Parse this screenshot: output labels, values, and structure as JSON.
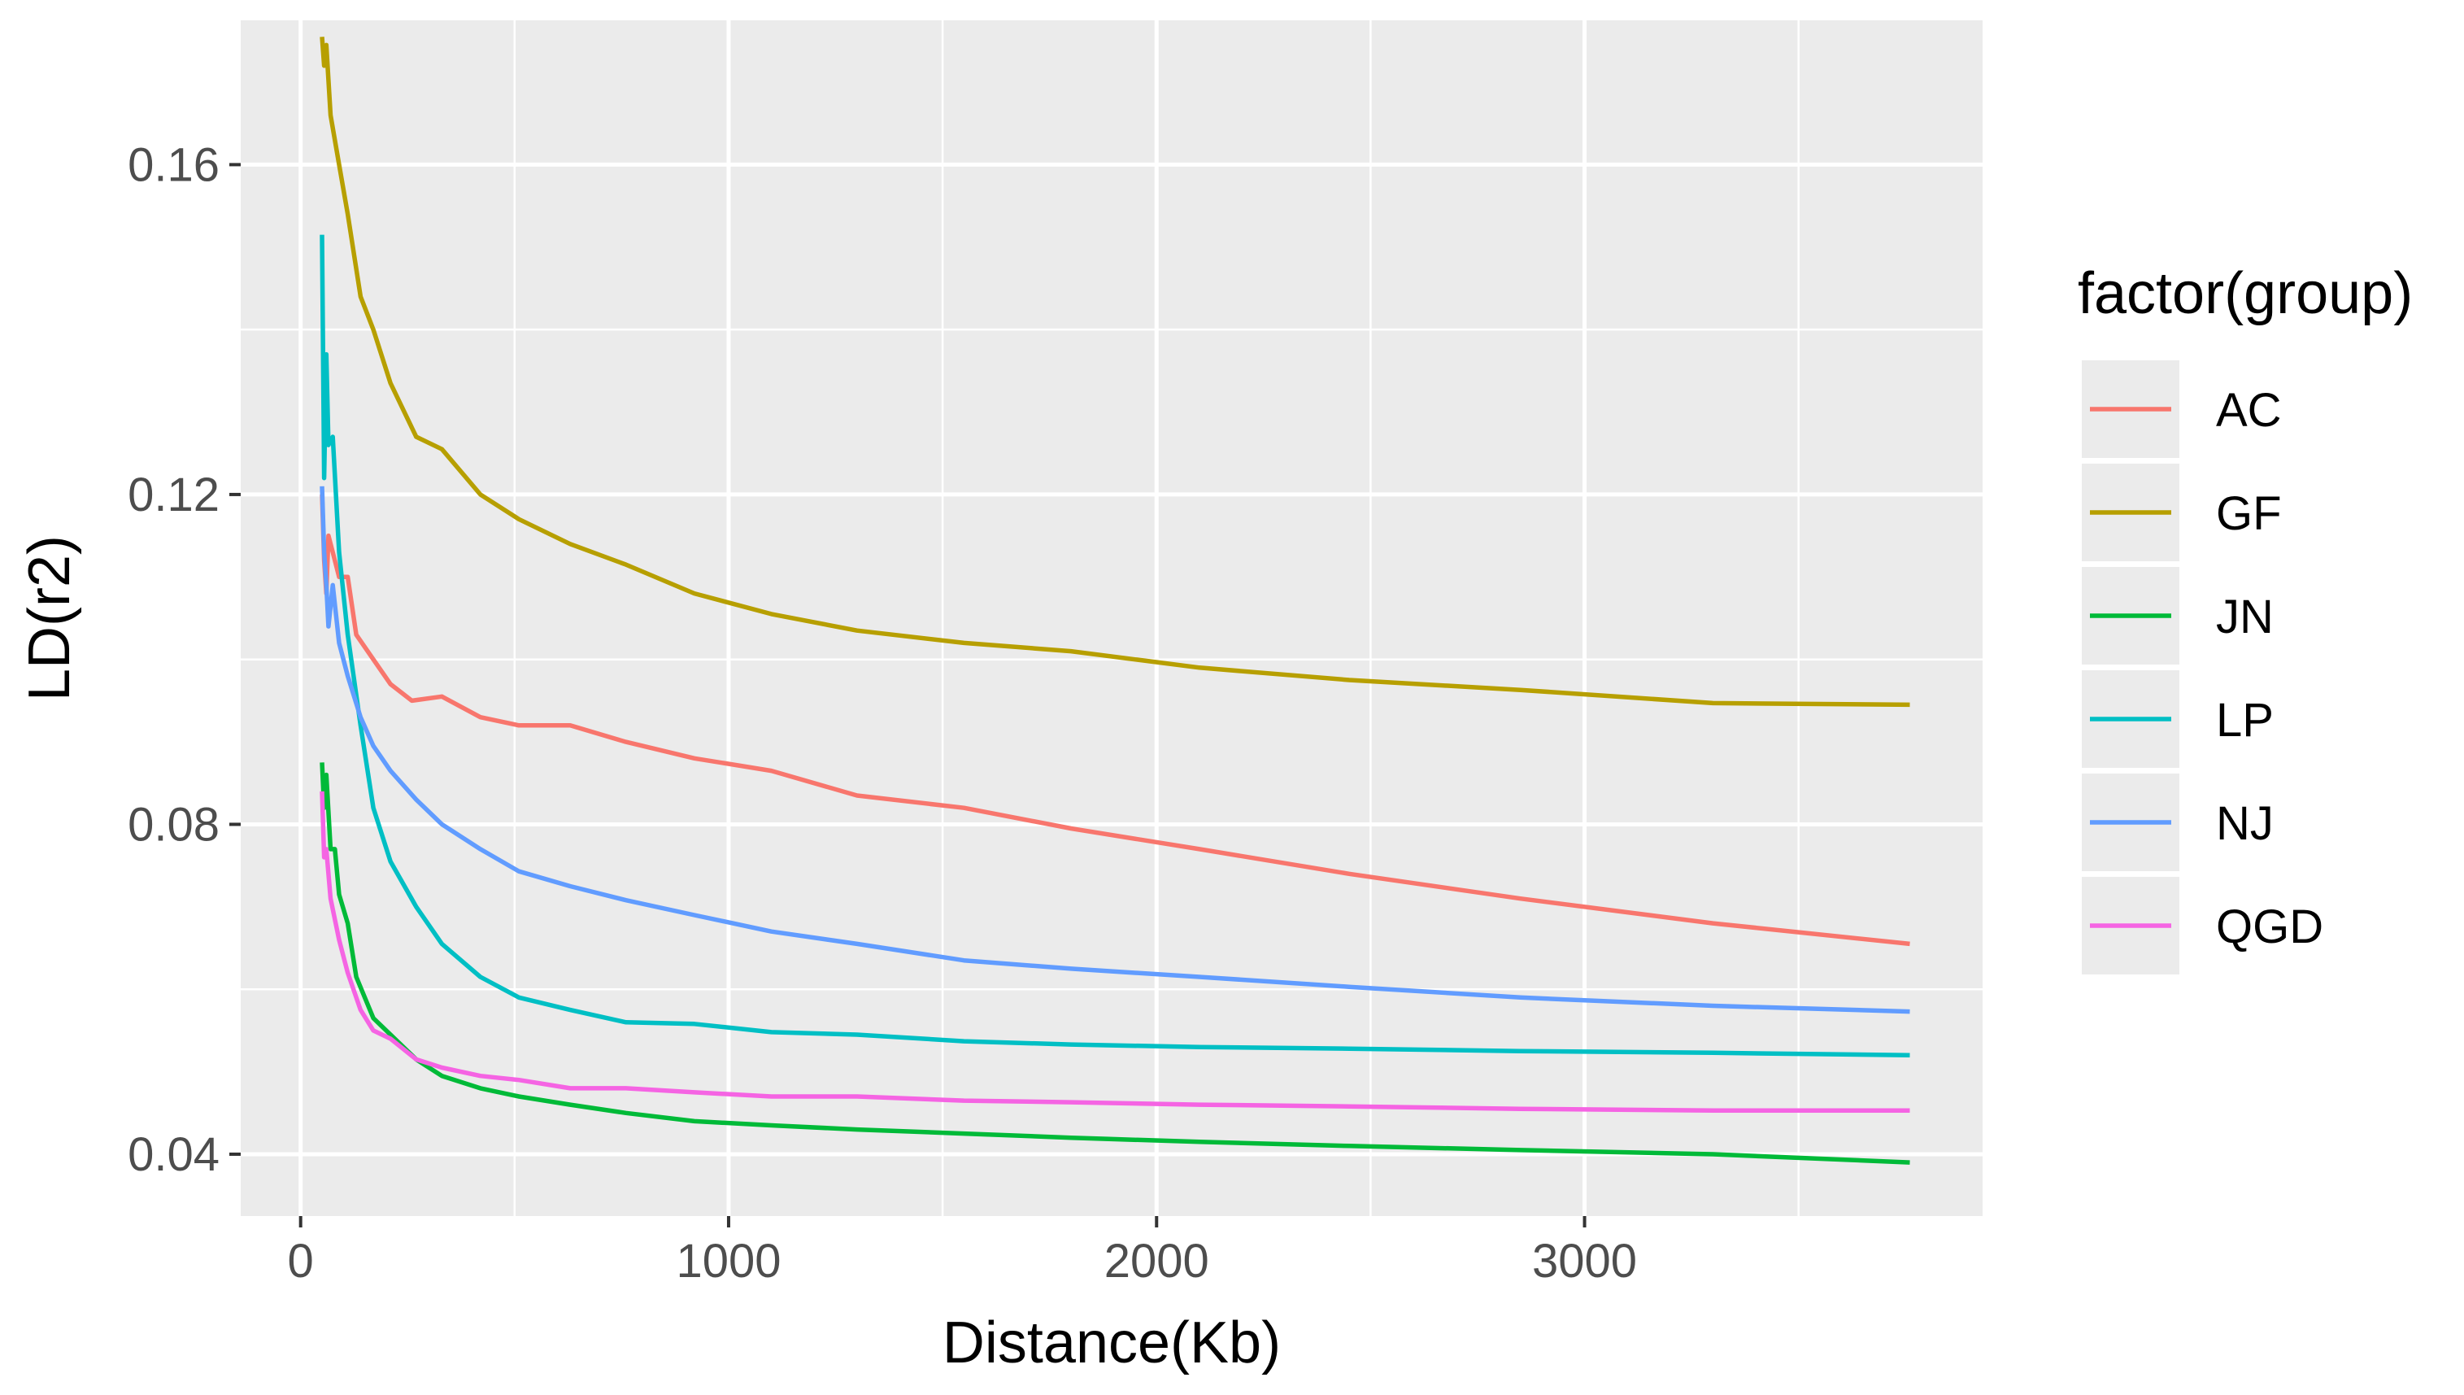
{
  "chart_data": {
    "type": "line",
    "xlabel": "Distance(Kb)",
    "ylabel": "LD(r2)",
    "xlim": [
      -140,
      3930
    ],
    "ylim": [
      0.0325,
      0.1775
    ],
    "x_ticks": [
      0,
      1000,
      2000,
      3000
    ],
    "x_tick_labels": [
      "0",
      "1000",
      "2000",
      "3000"
    ],
    "y_ticks": [
      0.04,
      0.08,
      0.12,
      0.16
    ],
    "y_tick_labels": [
      "0.04",
      "0.08",
      "0.12",
      "0.16"
    ],
    "grid": true,
    "legend": {
      "title": "factor(group)",
      "position": "right"
    },
    "series": [
      {
        "name": "AC",
        "color": "#F8766D",
        "points": [
          [
            50,
            0.12
          ],
          [
            55,
            0.112
          ],
          [
            60,
            0.108
          ],
          [
            65,
            0.115
          ],
          [
            75,
            0.113
          ],
          [
            90,
            0.11
          ],
          [
            110,
            0.11
          ],
          [
            130,
            0.103
          ],
          [
            170,
            0.1
          ],
          [
            210,
            0.097
          ],
          [
            260,
            0.095
          ],
          [
            330,
            0.0955
          ],
          [
            420,
            0.093
          ],
          [
            510,
            0.092
          ],
          [
            630,
            0.092
          ],
          [
            760,
            0.09
          ],
          [
            920,
            0.088
          ],
          [
            1100,
            0.0865
          ],
          [
            1300,
            0.0835
          ],
          [
            1550,
            0.082
          ],
          [
            1800,
            0.0795
          ],
          [
            2100,
            0.077
          ],
          [
            2450,
            0.074
          ],
          [
            2850,
            0.071
          ],
          [
            3300,
            0.068
          ],
          [
            3760,
            0.0655
          ]
        ]
      },
      {
        "name": "GF",
        "color": "#B79F00",
        "points": [
          [
            50,
            0.1755
          ],
          [
            55,
            0.172
          ],
          [
            60,
            0.1745
          ],
          [
            70,
            0.166
          ],
          [
            90,
            0.16
          ],
          [
            110,
            0.154
          ],
          [
            140,
            0.144
          ],
          [
            170,
            0.14
          ],
          [
            210,
            0.1335
          ],
          [
            270,
            0.127
          ],
          [
            330,
            0.1255
          ],
          [
            420,
            0.12
          ],
          [
            510,
            0.117
          ],
          [
            630,
            0.114
          ],
          [
            760,
            0.1115
          ],
          [
            920,
            0.108
          ],
          [
            1100,
            0.1055
          ],
          [
            1300,
            0.1035
          ],
          [
            1550,
            0.102
          ],
          [
            1800,
            0.101
          ],
          [
            2100,
            0.099
          ],
          [
            2450,
            0.0975
          ],
          [
            2850,
            0.0963
          ],
          [
            3300,
            0.0947
          ],
          [
            3760,
            0.0945
          ]
        ]
      },
      {
        "name": "JN",
        "color": "#00BA38",
        "points": [
          [
            50,
            0.0875
          ],
          [
            55,
            0.082
          ],
          [
            60,
            0.086
          ],
          [
            70,
            0.077
          ],
          [
            80,
            0.077
          ],
          [
            90,
            0.0715
          ],
          [
            110,
            0.068
          ],
          [
            130,
            0.0615
          ],
          [
            170,
            0.0565
          ],
          [
            210,
            0.0545
          ],
          [
            270,
            0.0515
          ],
          [
            330,
            0.0495
          ],
          [
            420,
            0.048
          ],
          [
            510,
            0.047
          ],
          [
            630,
            0.046
          ],
          [
            760,
            0.045
          ],
          [
            920,
            0.044
          ],
          [
            1100,
            0.0435
          ],
          [
            1300,
            0.043
          ],
          [
            1550,
            0.0425
          ],
          [
            1800,
            0.042
          ],
          [
            2100,
            0.0415
          ],
          [
            2450,
            0.041
          ],
          [
            2850,
            0.0405
          ],
          [
            3300,
            0.04
          ],
          [
            3760,
            0.039
          ]
        ]
      },
      {
        "name": "LP",
        "color": "#00BFC4",
        "points": [
          [
            50,
            0.1515
          ],
          [
            55,
            0.122
          ],
          [
            60,
            0.137
          ],
          [
            65,
            0.126
          ],
          [
            75,
            0.127
          ],
          [
            90,
            0.113
          ],
          [
            110,
            0.103
          ],
          [
            140,
            0.092
          ],
          [
            170,
            0.082
          ],
          [
            210,
            0.0755
          ],
          [
            270,
            0.07
          ],
          [
            330,
            0.0655
          ],
          [
            420,
            0.0615
          ],
          [
            510,
            0.059
          ],
          [
            630,
            0.0575
          ],
          [
            760,
            0.056
          ],
          [
            920,
            0.0558
          ],
          [
            1100,
            0.0548
          ],
          [
            1300,
            0.0545
          ],
          [
            1550,
            0.0537
          ],
          [
            1800,
            0.0533
          ],
          [
            2100,
            0.053
          ],
          [
            2450,
            0.0528
          ],
          [
            2850,
            0.0525
          ],
          [
            3300,
            0.0523
          ],
          [
            3760,
            0.052
          ]
        ]
      },
      {
        "name": "NJ",
        "color": "#619CFF",
        "points": [
          [
            50,
            0.121
          ],
          [
            55,
            0.113
          ],
          [
            60,
            0.109
          ],
          [
            65,
            0.104
          ],
          [
            75,
            0.109
          ],
          [
            90,
            0.102
          ],
          [
            110,
            0.098
          ],
          [
            140,
            0.093
          ],
          [
            170,
            0.0895
          ],
          [
            210,
            0.0865
          ],
          [
            270,
            0.083
          ],
          [
            330,
            0.08
          ],
          [
            420,
            0.077
          ],
          [
            510,
            0.0743
          ],
          [
            630,
            0.0725
          ],
          [
            760,
            0.0708
          ],
          [
            920,
            0.069
          ],
          [
            1100,
            0.067
          ],
          [
            1300,
            0.0655
          ],
          [
            1550,
            0.0635
          ],
          [
            1800,
            0.0625
          ],
          [
            2100,
            0.0615
          ],
          [
            2450,
            0.0603
          ],
          [
            2850,
            0.059
          ],
          [
            3300,
            0.058
          ],
          [
            3760,
            0.0573
          ]
        ]
      },
      {
        "name": "QGD",
        "color": "#F564E3",
        "points": [
          [
            50,
            0.084
          ],
          [
            55,
            0.076
          ],
          [
            60,
            0.077
          ],
          [
            70,
            0.071
          ],
          [
            90,
            0.066
          ],
          [
            110,
            0.062
          ],
          [
            140,
            0.0575
          ],
          [
            170,
            0.055
          ],
          [
            210,
            0.054
          ],
          [
            270,
            0.0515
          ],
          [
            330,
            0.0505
          ],
          [
            420,
            0.0495
          ],
          [
            510,
            0.049
          ],
          [
            630,
            0.048
          ],
          [
            760,
            0.048
          ],
          [
            920,
            0.0475
          ],
          [
            1100,
            0.047
          ],
          [
            1300,
            0.047
          ],
          [
            1550,
            0.0465
          ],
          [
            1800,
            0.0463
          ],
          [
            2100,
            0.046
          ],
          [
            2450,
            0.0458
          ],
          [
            2850,
            0.0455
          ],
          [
            3300,
            0.0453
          ],
          [
            3760,
            0.0453
          ]
        ]
      }
    ]
  }
}
